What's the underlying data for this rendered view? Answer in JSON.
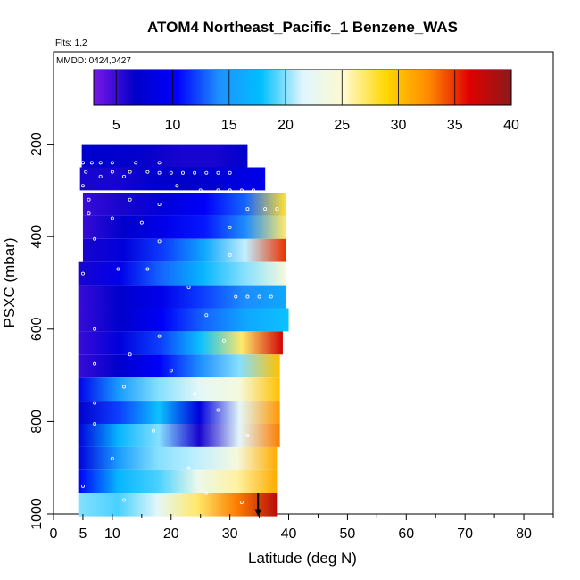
{
  "chart_data": {
    "type": "heatmap",
    "title": "ATOM4 Northeast_Pacific_1 Benzene_WAS",
    "flights_label": "Flts: 1,2",
    "dates_label": "MMDD: 0424,0427",
    "xlabel": "Latitude (deg N)",
    "ylabel": "PSXC (mbar)",
    "xlim": [
      0,
      85
    ],
    "ylim": [
      1000,
      0
    ],
    "x_ticks": [
      0,
      5,
      10,
      20,
      30,
      40,
      50,
      60,
      70,
      80
    ],
    "y_ticks": [
      200,
      400,
      600,
      800,
      1000
    ],
    "colorbar": {
      "min": 3,
      "max": 40,
      "ticks": [
        5,
        10,
        15,
        20,
        25,
        30,
        35,
        40
      ],
      "colors": [
        "#7a17e6",
        "#0000c8",
        "#0000ff",
        "#1e90ff",
        "#00bfff",
        "#dff6ff",
        "#fffacd",
        "#ffd700",
        "#ff8c00",
        "#e00000",
        "#8b1a1a"
      ]
    },
    "layers": [
      {
        "p": 225,
        "lat": [
          4.8,
          33
        ],
        "val": [
          7,
          7,
          6.5,
          6,
          6,
          7
        ]
      },
      {
        "p": 275,
        "lat": [
          4.5,
          36
        ],
        "val": [
          6,
          6,
          7,
          7,
          8,
          9
        ]
      },
      {
        "p": 330,
        "lat": [
          5,
          39.5
        ],
        "val": [
          5,
          6,
          8,
          10,
          13,
          28
        ]
      },
      {
        "p": 380,
        "lat": [
          5,
          39.5
        ],
        "val": [
          5,
          7,
          9,
          11,
          14,
          27
        ]
      },
      {
        "p": 430,
        "lat": [
          5,
          39.5
        ],
        "val": [
          6,
          8,
          12,
          16,
          21,
          35
        ]
      },
      {
        "p": 480,
        "lat": [
          4.2,
          39.5
        ],
        "val": [
          6,
          9,
          13,
          17,
          20,
          24
        ]
      },
      {
        "p": 530,
        "lat": [
          4.2,
          39.5
        ],
        "val": [
          5,
          7,
          9,
          12,
          14,
          16
        ]
      },
      {
        "p": 580,
        "lat": [
          4.2,
          40
        ],
        "val": [
          5,
          7,
          10,
          13,
          16,
          18
        ]
      },
      {
        "p": 630,
        "lat": [
          4.2,
          39
        ],
        "val": [
          5,
          8,
          12,
          18,
          27,
          37
        ]
      },
      {
        "p": 680,
        "lat": [
          4.2,
          38.5
        ],
        "val": [
          5,
          7,
          10,
          14,
          20,
          30
        ]
      },
      {
        "p": 730,
        "lat": [
          4.2,
          38.5
        ],
        "val": [
          9,
          15,
          20,
          22,
          24,
          30
        ]
      },
      {
        "p": 780,
        "lat": [
          4.2,
          38.5
        ],
        "val": [
          7,
          12,
          18,
          8,
          22,
          32
        ]
      },
      {
        "p": 830,
        "lat": [
          4.2,
          38.5
        ],
        "val": [
          8,
          17,
          20,
          6,
          22,
          33
        ]
      },
      {
        "p": 880,
        "lat": [
          4.2,
          38
        ],
        "val": [
          8,
          15,
          20,
          21,
          24,
          31
        ]
      },
      {
        "p": 930,
        "lat": [
          4.2,
          38
        ],
        "val": [
          10,
          17,
          19,
          23,
          26,
          31
        ]
      },
      {
        "p": 980,
        "lat": [
          4.2,
          38
        ],
        "val": [
          20,
          19,
          22,
          27,
          33,
          38
        ]
      }
    ],
    "sample_points": [
      {
        "lat": 5,
        "p": 240
      },
      {
        "lat": 6.5,
        "p": 240
      },
      {
        "lat": 8,
        "p": 240
      },
      {
        "lat": 10,
        "p": 240
      },
      {
        "lat": 14,
        "p": 240
      },
      {
        "lat": 18,
        "p": 240
      },
      {
        "lat": 5.5,
        "p": 260
      },
      {
        "lat": 10,
        "p": 260
      },
      {
        "lat": 13,
        "p": 260
      },
      {
        "lat": 16,
        "p": 260
      },
      {
        "lat": 18,
        "p": 262
      },
      {
        "lat": 20,
        "p": 262
      },
      {
        "lat": 22,
        "p": 262
      },
      {
        "lat": 24,
        "p": 262
      },
      {
        "lat": 26,
        "p": 262
      },
      {
        "lat": 28,
        "p": 262
      },
      {
        "lat": 30,
        "p": 262
      },
      {
        "lat": 8,
        "p": 270
      },
      {
        "lat": 12,
        "p": 270
      },
      {
        "lat": 5,
        "p": 290
      },
      {
        "lat": 21,
        "p": 290
      },
      {
        "lat": 25,
        "p": 300
      },
      {
        "lat": 28,
        "p": 300
      },
      {
        "lat": 30,
        "p": 300
      },
      {
        "lat": 32,
        "p": 300
      },
      {
        "lat": 34,
        "p": 300
      },
      {
        "lat": 6,
        "p": 320
      },
      {
        "lat": 13,
        "p": 320
      },
      {
        "lat": 18,
        "p": 330
      },
      {
        "lat": 33,
        "p": 340
      },
      {
        "lat": 36,
        "p": 340
      },
      {
        "lat": 38,
        "p": 340
      },
      {
        "lat": 6,
        "p": 350
      },
      {
        "lat": 10,
        "p": 360
      },
      {
        "lat": 15,
        "p": 370
      },
      {
        "lat": 30,
        "p": 380
      },
      {
        "lat": 7,
        "p": 405
      },
      {
        "lat": 18,
        "p": 410
      },
      {
        "lat": 30,
        "p": 440
      },
      {
        "lat": 11,
        "p": 470
      },
      {
        "lat": 16,
        "p": 470
      },
      {
        "lat": 5,
        "p": 480
      },
      {
        "lat": 23,
        "p": 510
      },
      {
        "lat": 31,
        "p": 530
      },
      {
        "lat": 33,
        "p": 530
      },
      {
        "lat": 35,
        "p": 530
      },
      {
        "lat": 37,
        "p": 530
      },
      {
        "lat": 26,
        "p": 570
      },
      {
        "lat": 7,
        "p": 600
      },
      {
        "lat": 18,
        "p": 615
      },
      {
        "lat": 29,
        "p": 625
      },
      {
        "lat": 13,
        "p": 655
      },
      {
        "lat": 7,
        "p": 675
      },
      {
        "lat": 20,
        "p": 690
      },
      {
        "lat": 12,
        "p": 725
      },
      {
        "lat": 24,
        "p": 740
      },
      {
        "lat": 7,
        "p": 760
      },
      {
        "lat": 28,
        "p": 775
      },
      {
        "lat": 7,
        "p": 805
      },
      {
        "lat": 17,
        "p": 820
      },
      {
        "lat": 33,
        "p": 830
      },
      {
        "lat": 10,
        "p": 880
      },
      {
        "lat": 23,
        "p": 900
      },
      {
        "lat": 5,
        "p": 940
      },
      {
        "lat": 26,
        "p": 955
      },
      {
        "lat": 12,
        "p": 970
      },
      {
        "lat": 32,
        "p": 975
      }
    ],
    "marker": {
      "lat": 34.8,
      "p_from": 955,
      "p_to": 1005
    }
  }
}
